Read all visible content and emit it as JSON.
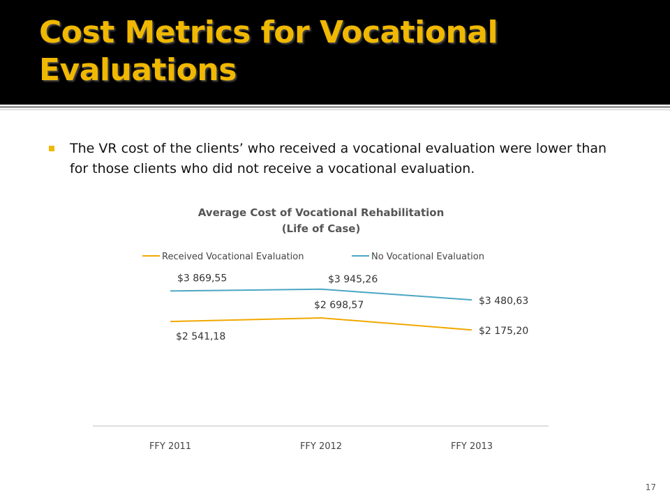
{
  "slide": {
    "title_line1": "Cost Metrics for Vocational",
    "title_line2": "Evaluations",
    "bullet": "The VR cost of the clients’ who received a vocational evaluation were lower than for those clients who did not receive a vocational evaluation.",
    "page_number": "17",
    "colors": {
      "title": "#f0b800",
      "title_bar": "#000000",
      "bullet": "#f0b800"
    }
  },
  "chart_data": {
    "type": "line",
    "title_line1": "Average Cost of Vocational  Rehabilitation",
    "title_line2": "(Life of Case)",
    "categories": [
      "FFY 2011",
      "FFY 2012",
      "FFY 2013"
    ],
    "series": [
      {
        "name": "Received Vocational Evaluation",
        "color": "#f0a800",
        "values": [
          2541.18,
          2698.57,
          2175.2
        ],
        "labels": [
          "$2 541,18",
          "$2 698,57",
          "$2 175,20"
        ]
      },
      {
        "name": "No Vocational Evaluation",
        "color": "#4ba6c4",
        "values": [
          3869.55,
          3945.26,
          3480.63
        ],
        "labels": [
          "$3 869,55",
          "$3 945,26",
          "$3 480,63"
        ]
      }
    ],
    "ylim": [
      -2000,
      5000
    ],
    "grid": false,
    "legend": "top"
  }
}
